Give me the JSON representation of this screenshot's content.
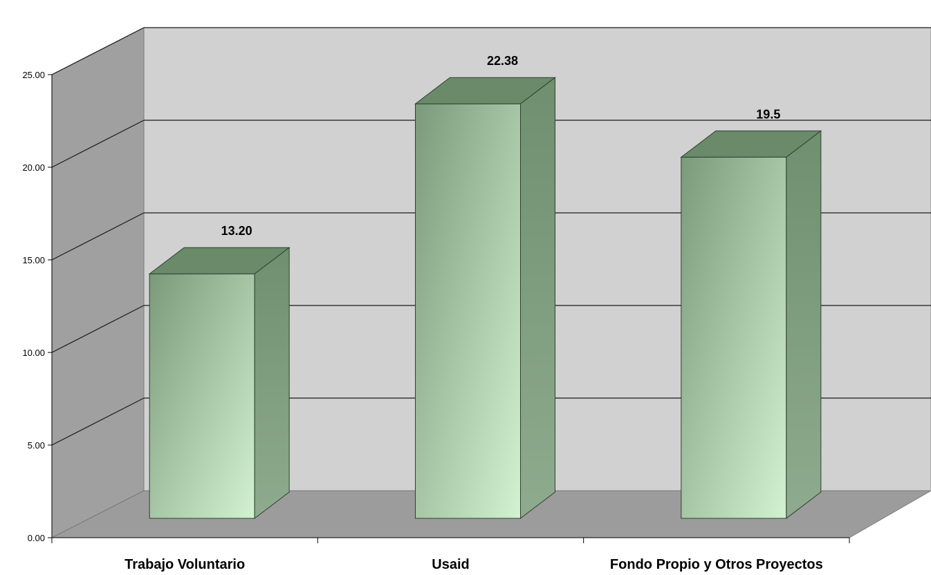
{
  "chart_data": {
    "type": "bar",
    "categories": [
      "Trabajo Voluntario",
      "Usaid",
      "Fondo Propio y Otros Proyectos"
    ],
    "values": [
      13.2,
      22.38,
      19.5
    ],
    "data_labels": [
      "13.20",
      "22.38",
      "19.5"
    ],
    "y_ticks": [
      "0.00",
      "5.00",
      "10.00",
      "15.00",
      "20.00",
      "25.00"
    ],
    "ylim": [
      0,
      25
    ],
    "grid": true,
    "three_d": true,
    "legend": "none"
  },
  "colors": {
    "back_wall": "#d1d1d1",
    "side_wall": "#a0a0a0",
    "floor": "#9c9c9c",
    "bar_front_light": "#d2f2d2",
    "bar_front_dark": "#7a9a7a",
    "bar_top": "#6a8a6a",
    "bar_side": "#7e9a7e"
  }
}
